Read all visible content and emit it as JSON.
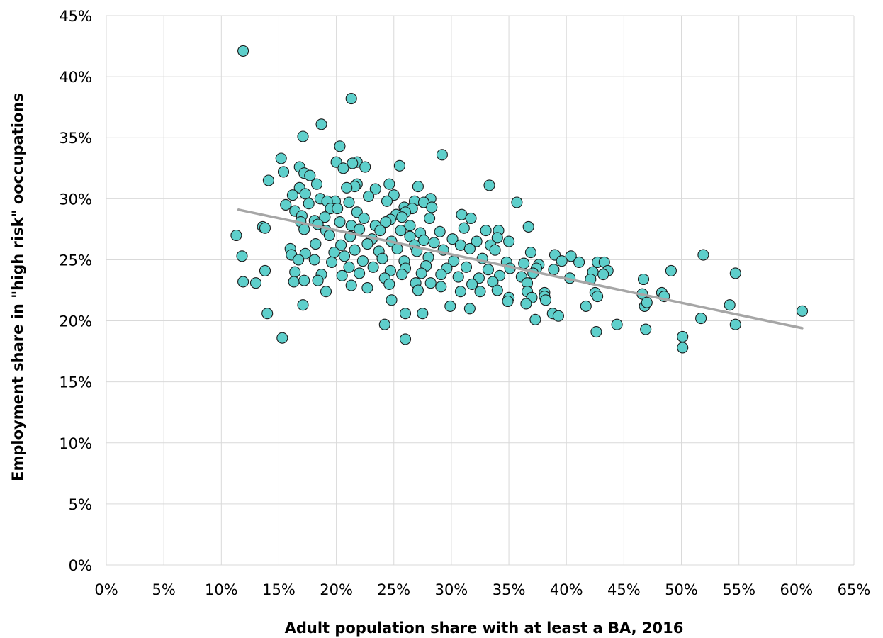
{
  "chart_data": {
    "type": "scatter",
    "xlabel": "Adult population share with at least a BA, 2016",
    "ylabel": "Employment share in \"high risk\" ooccupations",
    "xlim": [
      0,
      65
    ],
    "ylim": [
      0,
      45
    ],
    "x_ticks": [
      "0%",
      "5%",
      "10%",
      "15%",
      "20%",
      "25%",
      "30%",
      "35%",
      "40%",
      "45%",
      "50%",
      "55%",
      "60%",
      "65%"
    ],
    "y_ticks": [
      "0%",
      "5%",
      "10%",
      "15%",
      "20%",
      "25%",
      "30%",
      "35%",
      "40%",
      "45%"
    ],
    "grid": true,
    "legend": "none",
    "point_color": "#5ecfcb",
    "trendline_color": "#a6a6a6",
    "trendline": {
      "x": [
        11.5,
        60.5
      ],
      "y": [
        29.1,
        19.4
      ]
    },
    "points": [
      [
        11.9,
        42.1
      ],
      [
        21.3,
        38.2
      ],
      [
        18.7,
        36.1
      ],
      [
        17.1,
        35.1
      ],
      [
        20.3,
        34.3
      ],
      [
        29.2,
        33.6
      ],
      [
        15.2,
        33.3
      ],
      [
        20.0,
        33.0
      ],
      [
        21.8,
        33.0
      ],
      [
        21.4,
        32.9
      ],
      [
        16.8,
        32.6
      ],
      [
        20.6,
        32.5
      ],
      [
        22.5,
        32.6
      ],
      [
        25.5,
        32.7
      ],
      [
        15.4,
        32.2
      ],
      [
        17.2,
        32.1
      ],
      [
        17.7,
        31.9
      ],
      [
        14.1,
        31.5
      ],
      [
        18.3,
        31.2
      ],
      [
        21.8,
        31.2
      ],
      [
        21.6,
        31.0
      ],
      [
        24.6,
        31.2
      ],
      [
        33.3,
        31.1
      ],
      [
        20.9,
        30.9
      ],
      [
        23.4,
        30.8
      ],
      [
        27.1,
        31.0
      ],
      [
        16.8,
        30.9
      ],
      [
        16.2,
        30.3
      ],
      [
        17.3,
        30.4
      ],
      [
        18.6,
        30.0
      ],
      [
        22.8,
        30.2
      ],
      [
        25.0,
        30.3
      ],
      [
        19.9,
        29.8
      ],
      [
        24.4,
        29.8
      ],
      [
        21.1,
        29.7
      ],
      [
        26.8,
        29.8
      ],
      [
        28.2,
        30.0
      ],
      [
        15.6,
        29.5
      ],
      [
        17.6,
        29.6
      ],
      [
        19.2,
        29.8
      ],
      [
        25.9,
        29.3
      ],
      [
        26.6,
        29.2
      ],
      [
        27.6,
        29.7
      ],
      [
        28.3,
        29.3
      ],
      [
        35.7,
        29.7
      ],
      [
        16.4,
        29.0
      ],
      [
        19.5,
        29.2
      ],
      [
        20.1,
        29.2
      ],
      [
        21.8,
        28.9
      ],
      [
        25.2,
        28.7
      ],
      [
        26.0,
        28.9
      ],
      [
        30.9,
        28.7
      ],
      [
        17.0,
        28.6
      ],
      [
        18.1,
        28.2
      ],
      [
        19.0,
        28.5
      ],
      [
        22.4,
        28.4
      ],
      [
        24.7,
        28.3
      ],
      [
        25.7,
        28.5
      ],
      [
        28.1,
        28.4
      ],
      [
        31.7,
        28.4
      ],
      [
        16.9,
        28.1
      ],
      [
        18.4,
        27.9
      ],
      [
        20.3,
        28.1
      ],
      [
        21.3,
        27.8
      ],
      [
        23.4,
        27.8
      ],
      [
        24.3,
        28.1
      ],
      [
        26.4,
        27.8
      ],
      [
        13.6,
        27.7
      ],
      [
        13.8,
        27.6
      ],
      [
        17.2,
        27.5
      ],
      [
        19.1,
        27.4
      ],
      [
        22.0,
        27.5
      ],
      [
        23.8,
        27.4
      ],
      [
        25.6,
        27.4
      ],
      [
        27.3,
        27.2
      ],
      [
        29.0,
        27.3
      ],
      [
        31.1,
        27.6
      ],
      [
        33.0,
        27.4
      ],
      [
        34.1,
        27.4
      ],
      [
        36.7,
        27.7
      ],
      [
        11.3,
        27.0
      ],
      [
        19.4,
        27.0
      ],
      [
        21.2,
        26.9
      ],
      [
        23.1,
        26.7
      ],
      [
        26.4,
        26.9
      ],
      [
        27.6,
        26.6
      ],
      [
        30.1,
        26.7
      ],
      [
        32.2,
        26.5
      ],
      [
        34.0,
        26.8
      ],
      [
        18.2,
        26.3
      ],
      [
        20.4,
        26.2
      ],
      [
        22.7,
        26.3
      ],
      [
        24.8,
        26.5
      ],
      [
        26.8,
        26.2
      ],
      [
        28.5,
        26.4
      ],
      [
        30.8,
        26.2
      ],
      [
        33.4,
        26.2
      ],
      [
        35.0,
        26.5
      ],
      [
        16.0,
        25.9
      ],
      [
        19.8,
        25.6
      ],
      [
        21.6,
        25.8
      ],
      [
        23.7,
        25.7
      ],
      [
        25.3,
        25.9
      ],
      [
        27.0,
        25.7
      ],
      [
        29.3,
        25.8
      ],
      [
        31.6,
        25.9
      ],
      [
        33.8,
        25.8
      ],
      [
        36.9,
        25.6
      ],
      [
        39.0,
        25.4
      ],
      [
        40.4,
        25.3
      ],
      [
        51.9,
        25.4
      ],
      [
        11.8,
        25.3
      ],
      [
        16.1,
        25.4
      ],
      [
        17.3,
        25.5
      ],
      [
        18.1,
        25.0
      ],
      [
        20.7,
        25.3
      ],
      [
        22.3,
        24.9
      ],
      [
        24.0,
        25.1
      ],
      [
        25.9,
        24.9
      ],
      [
        28.0,
        25.2
      ],
      [
        30.2,
        24.9
      ],
      [
        32.7,
        25.1
      ],
      [
        34.8,
        24.8
      ],
      [
        36.3,
        24.7
      ],
      [
        37.6,
        24.6
      ],
      [
        39.6,
        24.9
      ],
      [
        41.1,
        24.8
      ],
      [
        42.7,
        24.8
      ],
      [
        43.3,
        24.8
      ],
      [
        16.7,
        25.0
      ],
      [
        19.6,
        24.8
      ],
      [
        21.1,
        24.4
      ],
      [
        23.2,
        24.4
      ],
      [
        24.7,
        24.1
      ],
      [
        26.0,
        24.3
      ],
      [
        27.8,
        24.5
      ],
      [
        29.6,
        24.3
      ],
      [
        31.3,
        24.4
      ],
      [
        33.2,
        24.2
      ],
      [
        35.1,
        24.3
      ],
      [
        37.4,
        24.3
      ],
      [
        38.9,
        24.2
      ],
      [
        42.3,
        24.0
      ],
      [
        43.6,
        24.1
      ],
      [
        49.1,
        24.1
      ],
      [
        54.7,
        23.9
      ],
      [
        13.8,
        24.1
      ],
      [
        16.4,
        24.0
      ],
      [
        18.7,
        23.8
      ],
      [
        20.5,
        23.7
      ],
      [
        22.0,
        23.9
      ],
      [
        24.2,
        23.5
      ],
      [
        25.7,
        23.8
      ],
      [
        27.4,
        23.9
      ],
      [
        29.1,
        23.8
      ],
      [
        30.6,
        23.6
      ],
      [
        32.4,
        23.5
      ],
      [
        34.2,
        23.7
      ],
      [
        36.1,
        23.6
      ],
      [
        37.1,
        23.9
      ],
      [
        40.3,
        23.5
      ],
      [
        42.1,
        23.4
      ],
      [
        43.2,
        23.8
      ],
      [
        46.7,
        23.4
      ],
      [
        11.9,
        23.2
      ],
      [
        13.0,
        23.1
      ],
      [
        16.3,
        23.2
      ],
      [
        17.2,
        23.3
      ],
      [
        18.4,
        23.3
      ],
      [
        21.3,
        22.9
      ],
      [
        24.6,
        23.0
      ],
      [
        26.9,
        23.1
      ],
      [
        28.2,
        23.1
      ],
      [
        31.8,
        23.0
      ],
      [
        33.6,
        23.2
      ],
      [
        36.6,
        23.1
      ],
      [
        19.1,
        22.4
      ],
      [
        22.7,
        22.7
      ],
      [
        27.1,
        22.5
      ],
      [
        29.1,
        22.8
      ],
      [
        30.8,
        22.4
      ],
      [
        32.5,
        22.4
      ],
      [
        34.0,
        22.5
      ],
      [
        36.6,
        22.4
      ],
      [
        38.1,
        22.3
      ],
      [
        42.5,
        22.3
      ],
      [
        46.6,
        22.2
      ],
      [
        48.3,
        22.3
      ],
      [
        24.8,
        21.7
      ],
      [
        35.0,
        21.9
      ],
      [
        37.0,
        21.9
      ],
      [
        38.1,
        22.0
      ],
      [
        42.7,
        22.0
      ],
      [
        48.5,
        22.0
      ],
      [
        17.1,
        21.3
      ],
      [
        29.9,
        21.2
      ],
      [
        31.6,
        21.0
      ],
      [
        34.9,
        21.6
      ],
      [
        36.5,
        21.4
      ],
      [
        38.2,
        21.7
      ],
      [
        41.7,
        21.2
      ],
      [
        46.8,
        21.2
      ],
      [
        47.0,
        21.5
      ],
      [
        54.2,
        21.3
      ],
      [
        14.0,
        20.6
      ],
      [
        26.0,
        20.6
      ],
      [
        27.5,
        20.6
      ],
      [
        37.3,
        20.1
      ],
      [
        38.8,
        20.6
      ],
      [
        39.3,
        20.4
      ],
      [
        51.7,
        20.2
      ],
      [
        60.5,
        20.8
      ],
      [
        24.2,
        19.7
      ],
      [
        44.4,
        19.7
      ],
      [
        54.7,
        19.7
      ],
      [
        42.6,
        19.1
      ],
      [
        46.9,
        19.3
      ],
      [
        50.1,
        18.7
      ],
      [
        15.3,
        18.6
      ],
      [
        26.0,
        18.5
      ],
      [
        50.1,
        17.8
      ]
    ]
  }
}
